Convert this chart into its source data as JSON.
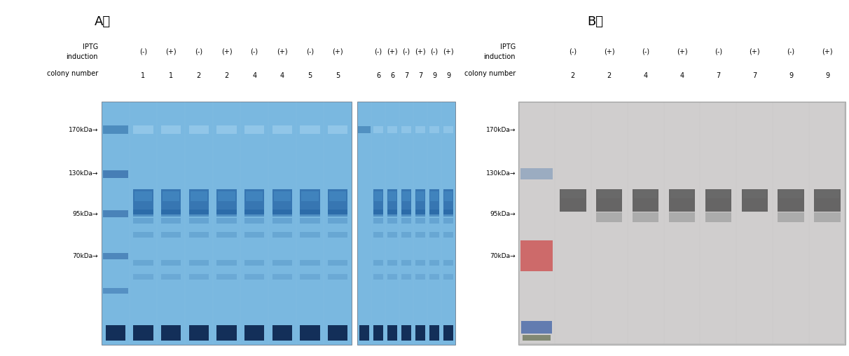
{
  "figure_width": 12.12,
  "figure_height": 5.08,
  "dpi": 100,
  "bg_color": "#ffffff",
  "panel_A_label": "A）",
  "panel_B_label": "B）",
  "panel_A_left_iptg": [
    "(-)",
    "(+)",
    "(-)",
    "(+)",
    "(-)",
    "(+)",
    "(-)",
    "(+)"
  ],
  "panel_A_left_colony": [
    "1",
    "1",
    "2",
    "2",
    "4",
    "4",
    "5",
    "5"
  ],
  "panel_A_right_iptg": [
    "(-)",
    "(+)",
    "(-)",
    "(+)",
    "(-)",
    "(+)"
  ],
  "panel_A_right_colony": [
    "6",
    "6",
    "7",
    "7",
    "9",
    "9"
  ],
  "panel_B_iptg": [
    "(-)",
    "(+)",
    "(-)",
    "(+)",
    "(-)",
    "(+)",
    "(-)",
    "(+)"
  ],
  "panel_B_colony": [
    "2",
    "2",
    "4",
    "4",
    "7",
    "7",
    "9",
    "9"
  ],
  "mw_markers": [
    "170kDa→",
    "130kDa→",
    "95kDa→",
    "70kDa→"
  ],
  "gel_bg": "#7ab8e0",
  "gel_band_dark": "#1a5a96",
  "gel_band_mid": "#3a7ab0",
  "gel_band_light": "#9ecae1",
  "gel_bottom_band": "#0a2a60",
  "ladder_color": "#2a6090",
  "blot_bg": "#c8c8c8",
  "blot_band_dark": "#484848",
  "blot_band_mid": "#808080",
  "blot_red": "#cc4444",
  "blot_blue": "#3060a0",
  "blot_blue_marker": "#7090b8",
  "blot_green": "#507838",
  "label_fontsize": 7,
  "panel_label_fontsize": 13,
  "mw_fontsize": 6.5
}
